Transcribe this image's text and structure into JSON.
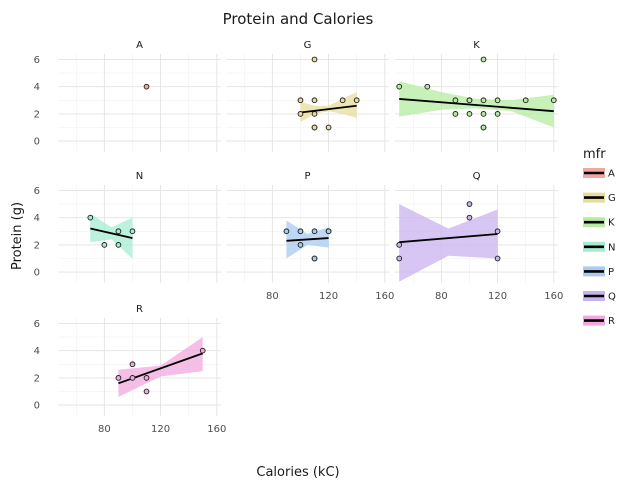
{
  "chart_data": {
    "type": "scatter",
    "title": "Protein and Calories",
    "xlabel": "Calories (kC)",
    "ylabel": "Protein (g)",
    "xlim": [
      47,
      163
    ],
    "ylim": [
      -0.8,
      6.4
    ],
    "x_ticks": [
      80,
      120,
      160
    ],
    "y_ticks": [
      0,
      2,
      4,
      6
    ],
    "grid": true,
    "legend_title": "mfr",
    "legend_position": "right",
    "panels": [
      {
        "name": "A",
        "color": "#f4a6a0",
        "points": [
          [
            110,
            4
          ]
        ],
        "fit": null
      },
      {
        "name": "G",
        "color": "#e8dc9c",
        "points": [
          [
            100,
            3
          ],
          [
            110,
            6
          ],
          [
            110,
            3
          ],
          [
            100,
            2
          ],
          [
            110,
            2
          ],
          [
            110,
            1
          ],
          [
            110,
            1
          ],
          [
            120,
            1
          ],
          [
            130,
            3
          ],
          [
            140,
            3
          ]
        ],
        "fit": {
          "x0": 100,
          "y0": 2.1,
          "x1": 140,
          "y1": 2.6,
          "band_x": [
            100,
            110,
            120,
            130,
            140
          ],
          "band_lo": [
            1.4,
            2.0,
            2.2,
            2.0,
            1.7
          ],
          "band_hi": [
            2.9,
            2.6,
            2.6,
            3.1,
            3.6
          ]
        }
      },
      {
        "name": "K",
        "color": "#b6eca2",
        "points": [
          [
            50,
            4
          ],
          [
            70,
            4
          ],
          [
            90,
            3
          ],
          [
            90,
            2
          ],
          [
            100,
            3
          ],
          [
            100,
            3
          ],
          [
            100,
            2
          ],
          [
            110,
            3
          ],
          [
            110,
            2
          ],
          [
            110,
            1
          ],
          [
            110,
            1
          ],
          [
            110,
            6
          ],
          [
            120,
            3
          ],
          [
            120,
            2
          ],
          [
            140,
            3
          ],
          [
            160,
            3
          ]
        ],
        "fit": {
          "x0": 50,
          "y0": 3.1,
          "x1": 160,
          "y1": 2.2,
          "band_x": [
            50,
            80,
            105,
            130,
            160
          ],
          "band_lo": [
            1.8,
            2.3,
            2.4,
            2.2,
            1.0
          ],
          "band_hi": [
            4.4,
            3.6,
            3.1,
            3.0,
            3.4
          ]
        }
      },
      {
        "name": "N",
        "color": "#a4ecd2",
        "points": [
          [
            70,
            4
          ],
          [
            80,
            2
          ],
          [
            90,
            2
          ],
          [
            90,
            3
          ],
          [
            100,
            3
          ]
        ],
        "fit": {
          "x0": 70,
          "y0": 3.2,
          "x1": 100,
          "y1": 2.5,
          "band_x": [
            70,
            85,
            100
          ],
          "band_lo": [
            2.2,
            2.4,
            1.0
          ],
          "band_hi": [
            4.3,
            3.3,
            4.0
          ]
        }
      },
      {
        "name": "P",
        "color": "#a8cbef",
        "points": [
          [
            90,
            3
          ],
          [
            100,
            3
          ],
          [
            100,
            2
          ],
          [
            110,
            3
          ],
          [
            110,
            1
          ],
          [
            110,
            1
          ],
          [
            120,
            3
          ],
          [
            120,
            3
          ]
        ],
        "fit": {
          "x0": 90,
          "y0": 2.3,
          "x1": 120,
          "y1": 2.5,
          "band_x": [
            90,
            105,
            120
          ],
          "band_lo": [
            1.0,
            2.0,
            1.8
          ],
          "band_hi": [
            3.8,
            2.8,
            3.3
          ]
        }
      },
      {
        "name": "Q",
        "color": "#c9b2ef",
        "points": [
          [
            50,
            1
          ],
          [
            50,
            2
          ],
          [
            100,
            5
          ],
          [
            100,
            4
          ],
          [
            120,
            3
          ],
          [
            120,
            1
          ]
        ],
        "fit": {
          "x0": 50,
          "y0": 2.2,
          "x1": 120,
          "y1": 2.8,
          "band_x": [
            50,
            85,
            120
          ],
          "band_lo": [
            -0.7,
            1.2,
            1.0
          ],
          "band_hi": [
            5.0,
            3.2,
            4.6
          ]
        }
      },
      {
        "name": "R",
        "color": "#f2a8de",
        "points": [
          [
            90,
            2
          ],
          [
            100,
            3
          ],
          [
            100,
            2
          ],
          [
            110,
            2
          ],
          [
            110,
            1
          ],
          [
            150,
            4
          ]
        ],
        "fit": {
          "x0": 90,
          "y0": 1.6,
          "x1": 150,
          "y1": 3.8,
          "band_x": [
            90,
            120,
            150
          ],
          "band_lo": [
            0.6,
            2.1,
            2.5
          ],
          "band_hi": [
            2.6,
            2.9,
            5.0
          ]
        }
      }
    ]
  }
}
